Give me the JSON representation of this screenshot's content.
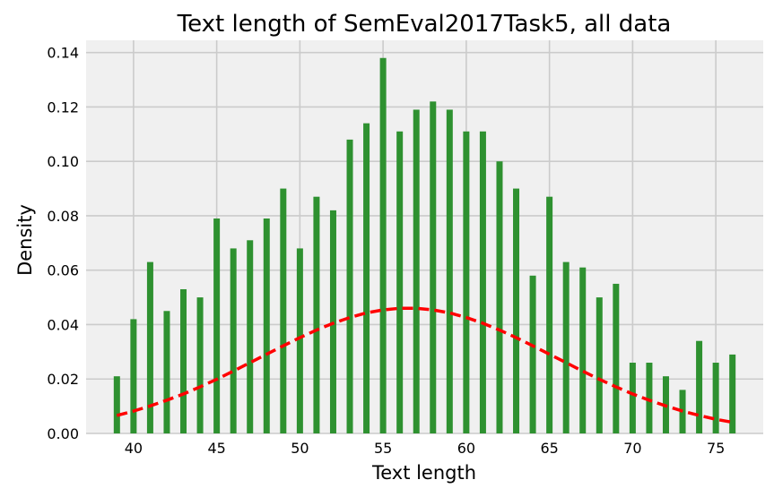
{
  "chart_data": {
    "type": "bar",
    "title": "Text length of SemEval2017Task5, all data",
    "xlabel": "Text length",
    "ylabel": "Density",
    "xlim": [
      37.15,
      77.85
    ],
    "ylim": [
      0,
      0.1445
    ],
    "grid": true,
    "legend": "none",
    "x_ticks": [
      "40",
      "45",
      "50",
      "55",
      "60",
      "65",
      "70",
      "75"
    ],
    "y_ticks": [
      "0.00",
      "0.02",
      "0.04",
      "0.06",
      "0.08",
      "0.10",
      "0.12",
      "0.14"
    ],
    "x_tick_values": [
      40,
      45,
      50,
      55,
      60,
      65,
      70,
      75
    ],
    "y_tick_values": [
      0,
      0.02,
      0.04,
      0.06,
      0.08,
      0.1,
      0.12,
      0.14
    ],
    "series": [
      {
        "kind": "bar",
        "x": [
          39,
          40,
          41,
          42,
          43,
          44,
          45,
          46,
          47,
          48,
          49,
          50,
          51,
          52,
          53,
          54,
          55,
          56,
          57,
          58,
          59,
          60,
          61,
          62,
          63,
          64,
          65,
          66,
          67,
          68,
          69,
          70,
          71,
          72,
          73,
          74,
          75,
          76
        ],
        "values": [
          0.021,
          0.042,
          0.063,
          0.045,
          0.053,
          0.05,
          0.079,
          0.068,
          0.071,
          0.079,
          0.09,
          0.068,
          0.087,
          0.082,
          0.108,
          0.114,
          0.138,
          0.111,
          0.119,
          0.122,
          0.119,
          0.111,
          0.111,
          0.1,
          0.09,
          0.058,
          0.087,
          0.063,
          0.061,
          0.05,
          0.055,
          0.026,
          0.026,
          0.021,
          0.016,
          0.034,
          0.026,
          0.029
        ],
        "color": "#2e9130"
      },
      {
        "kind": "line",
        "style": "dashed",
        "color": "#ff0000",
        "x": [
          39,
          40,
          41,
          42,
          43,
          44,
          45,
          46,
          47,
          48,
          49,
          50,
          51,
          52,
          53,
          54,
          55,
          56,
          57,
          58,
          59,
          60,
          61,
          62,
          63,
          64,
          65,
          66,
          67,
          68,
          69,
          70,
          71,
          72,
          73,
          74,
          75,
          76
        ],
        "values": [
          0.0066,
          0.0082,
          0.0101,
          0.0122,
          0.0145,
          0.0171,
          0.0199,
          0.0229,
          0.026,
          0.0291,
          0.0322,
          0.0352,
          0.038,
          0.0405,
          0.0426,
          0.0443,
          0.0454,
          0.046,
          0.046,
          0.0454,
          0.0443,
          0.0426,
          0.0405,
          0.038,
          0.0352,
          0.0322,
          0.0291,
          0.026,
          0.0229,
          0.0199,
          0.0171,
          0.0145,
          0.0122,
          0.0101,
          0.0082,
          0.0066,
          0.0052,
          0.0041
        ]
      }
    ]
  },
  "colors": {
    "background": "#ffffff",
    "plot_background": "#f0f0f0",
    "grid": "#cbcbcb",
    "bar": "#2e9130",
    "line": "#ff0000"
  }
}
